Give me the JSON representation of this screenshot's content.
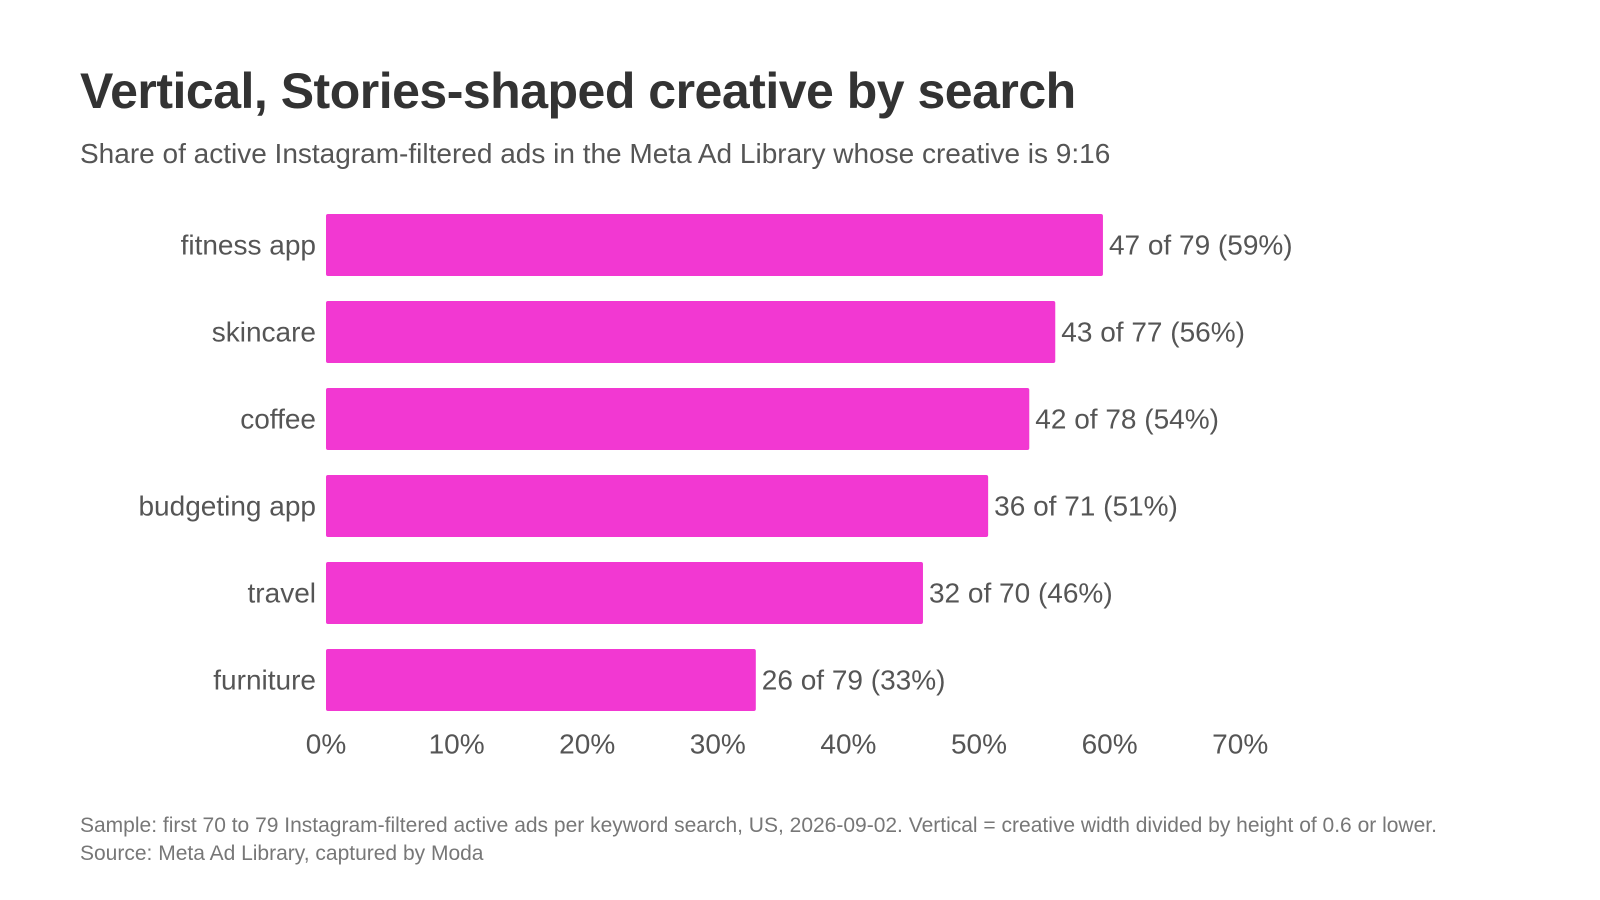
{
  "chart_data": {
    "type": "bar",
    "orientation": "horizontal",
    "title": "Vertical, Stories-shaped creative by search",
    "subtitle": "Share of active Instagram-filtered ads in the Meta Ad Library whose creative is 9:16",
    "categories": [
      "fitness app",
      "skincare",
      "coffee",
      "budgeting app",
      "travel",
      "furniture"
    ],
    "values": [
      59.49,
      55.84,
      53.85,
      50.7,
      45.71,
      32.91
    ],
    "counts": [
      47,
      43,
      42,
      36,
      32,
      26
    ],
    "totals": [
      79,
      77,
      78,
      71,
      70,
      79
    ],
    "data_labels": [
      "47 of 79 (59%)",
      "43 of 77 (56%)",
      "42 of 78 (54%)",
      "36 of 71 (51%)",
      "32 of 70 (46%)",
      "26 of 79 (33%)"
    ],
    "xlim": [
      0,
      70
    ],
    "x_ticks": [
      0,
      10,
      20,
      30,
      40,
      50,
      60,
      70
    ],
    "x_tick_labels": [
      "0%",
      "10%",
      "20%",
      "30%",
      "40%",
      "50%",
      "60%",
      "70%"
    ],
    "grid": false,
    "bar_color": "#f238d2"
  },
  "footer": {
    "note": "Sample: first 70 to 79 Instagram-filtered active ads per keyword search, US, 2026-09-02. Vertical = creative width divided by height of 0.6 or lower.",
    "source": "Source: Meta Ad Library, captured by Moda"
  }
}
